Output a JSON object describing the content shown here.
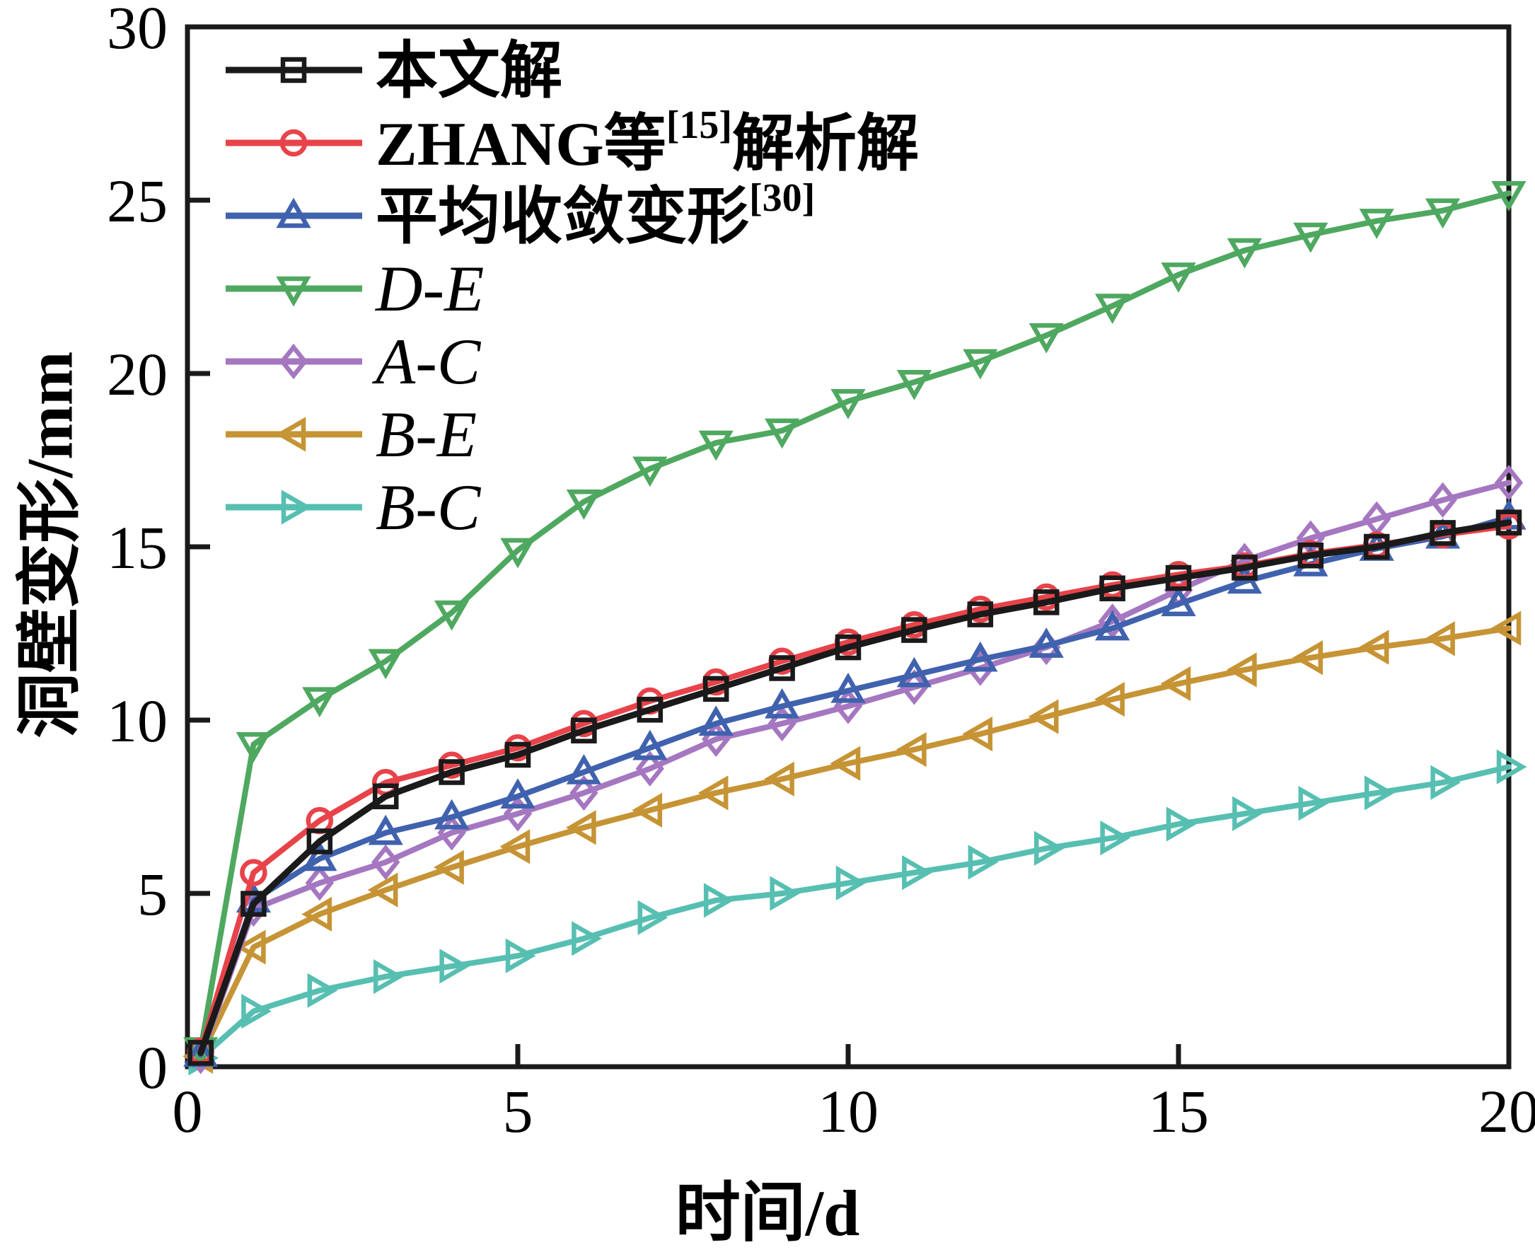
{
  "page": {
    "background": "#ffffff",
    "axis_color": "#1a1a1a",
    "text_color": "#000000"
  },
  "chart_data": {
    "type": "line",
    "title": "",
    "xlabel": "时间/d",
    "ylabel": "洞壁变形/mm",
    "xlim": [
      0,
      20
    ],
    "ylim": [
      0,
      30
    ],
    "xticks": [
      "0",
      "5",
      "10",
      "15",
      "20"
    ],
    "xtick_values": [
      0,
      5,
      10,
      15,
      20
    ],
    "yticks": [
      "0",
      "5",
      "10",
      "15",
      "20",
      "25",
      "30"
    ],
    "ytick_values": [
      0,
      5,
      10,
      15,
      20,
      25,
      30
    ],
    "grid": false,
    "legend_position": "upper-left-inside",
    "x": [
      0.2,
      1,
      2,
      3,
      4,
      5,
      6,
      7,
      8,
      9,
      10,
      11,
      12,
      13,
      14,
      15,
      16,
      17,
      18,
      19,
      20
    ],
    "series": [
      {
        "name": "本文解",
        "sup": "",
        "suffix": "",
        "italic": false,
        "color": "#1a1a1a",
        "marker": "square",
        "values": [
          0.4,
          4.7,
          6.5,
          7.8,
          8.5,
          9.0,
          9.7,
          10.3,
          10.9,
          11.5,
          12.1,
          12.6,
          13.05,
          13.4,
          13.8,
          14.1,
          14.4,
          14.75,
          15.0,
          15.4,
          15.7
        ]
      },
      {
        "name": "ZHANG等",
        "sup": "[15]",
        "suffix": "解析解",
        "italic": false,
        "color": "#e8434a",
        "marker": "circle",
        "values": [
          0.45,
          5.6,
          7.1,
          8.2,
          8.7,
          9.2,
          9.9,
          10.55,
          11.1,
          11.7,
          12.25,
          12.75,
          13.2,
          13.55,
          13.9,
          14.2,
          14.45,
          14.8,
          15.05,
          15.35,
          15.6
        ]
      },
      {
        "name": "平均收敛变形",
        "sup": "[30]",
        "suffix": "",
        "italic": false,
        "color": "#4062ae",
        "marker": "triangle-up",
        "values": [
          0.35,
          4.8,
          6.0,
          6.75,
          7.2,
          7.8,
          8.5,
          9.2,
          9.9,
          10.4,
          10.85,
          11.3,
          11.75,
          12.15,
          12.65,
          13.35,
          14.0,
          14.5,
          14.95,
          15.3,
          15.85
        ]
      },
      {
        "name": "D-E",
        "sup": "",
        "suffix": "",
        "italic": true,
        "color": "#4fa860",
        "marker": "triangle-down",
        "values": [
          0.5,
          9.3,
          10.6,
          11.7,
          13.1,
          14.9,
          16.3,
          17.25,
          18.0,
          18.35,
          19.2,
          19.75,
          20.35,
          21.1,
          21.95,
          22.85,
          23.55,
          24.0,
          24.4,
          24.7,
          25.2
        ]
      },
      {
        "name": "A-C",
        "sup": "",
        "suffix": "",
        "italic": true,
        "color": "#a577c0",
        "marker": "diamond",
        "values": [
          0.3,
          4.55,
          5.3,
          5.9,
          6.75,
          7.3,
          7.9,
          8.6,
          9.45,
          9.9,
          10.4,
          10.95,
          11.5,
          12.1,
          12.85,
          13.75,
          14.6,
          15.25,
          15.8,
          16.35,
          16.85
        ]
      },
      {
        "name": "B-E",
        "sup": "",
        "suffix": "",
        "italic": true,
        "color": "#c69435",
        "marker": "triangle-left",
        "values": [
          0.3,
          3.45,
          4.4,
          5.1,
          5.75,
          6.35,
          6.9,
          7.4,
          7.9,
          8.3,
          8.75,
          9.15,
          9.6,
          10.1,
          10.6,
          11.05,
          11.45,
          11.8,
          12.1,
          12.35,
          12.65
        ]
      },
      {
        "name": "B-C",
        "sup": "",
        "suffix": "",
        "italic": true,
        "color": "#57bfb2",
        "marker": "triangle-right",
        "values": [
          0.25,
          1.6,
          2.2,
          2.6,
          2.9,
          3.2,
          3.7,
          4.3,
          4.8,
          5.0,
          5.3,
          5.6,
          5.9,
          6.3,
          6.6,
          7.0,
          7.3,
          7.6,
          7.9,
          8.2,
          8.65
        ]
      }
    ]
  }
}
